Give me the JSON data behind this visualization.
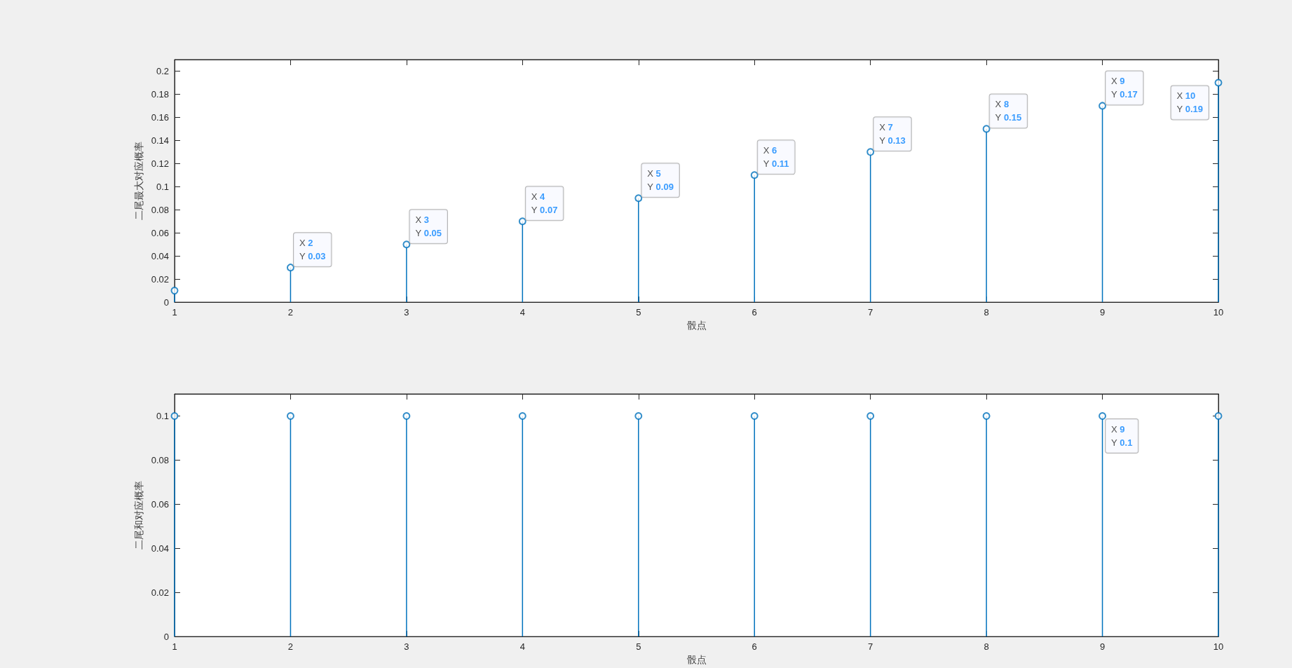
{
  "chart_data": [
    {
      "type": "lollipop",
      "xlabel": "骰点",
      "ylabel": "二尾最大对应概率",
      "x": [
        1,
        2,
        3,
        4,
        5,
        6,
        7,
        8,
        9,
        10
      ],
      "values": [
        0.01,
        0.03,
        0.05,
        0.07,
        0.09,
        0.11,
        0.13,
        0.15,
        0.17,
        0.19
      ],
      "color": "#0072bd",
      "marker": "circle",
      "value_labels": [
        null,
        "X 2\nY 0.03",
        "X 3\nY 0.05",
        "X 4\nY 0.07",
        "X 5\nY 0.09",
        "X 6\nY 0.11",
        "X 7\nY 0.13",
        "X 8\nY 0.15",
        "X 9\nY 0.17",
        "X 10\nY 0.19"
      ],
      "xlim": [
        1,
        10
      ],
      "xticks": [
        1,
        2,
        3,
        4,
        5,
        6,
        7,
        8,
        9,
        10
      ],
      "ylim": [
        0,
        0.21
      ],
      "yticks": [
        0,
        0.02,
        0.04,
        0.06,
        0.08,
        0.1,
        0.12,
        0.14,
        0.16,
        0.18,
        0.2
      ],
      "grid": false
    },
    {
      "type": "lollipop",
      "xlabel": "骰点",
      "ylabel": "二尾和对应概率",
      "x": [
        1,
        2,
        3,
        4,
        5,
        6,
        7,
        8,
        9,
        10
      ],
      "values": [
        0.1,
        0.1,
        0.1,
        0.1,
        0.1,
        0.1,
        0.1,
        0.1,
        0.1,
        0.1
      ],
      "color": "#0072bd",
      "marker": "circle",
      "value_labels": [
        null,
        null,
        null,
        null,
        null,
        null,
        null,
        null,
        "X 9\nY 0.1",
        null
      ],
      "xlim": [
        1,
        10
      ],
      "xticks": [
        1,
        2,
        3,
        4,
        5,
        6,
        7,
        8,
        9,
        10
      ],
      "ylim": [
        0,
        0.11
      ],
      "yticks": [
        0,
        0.02,
        0.04,
        0.06,
        0.08,
        0.1
      ],
      "grid": false
    }
  ]
}
